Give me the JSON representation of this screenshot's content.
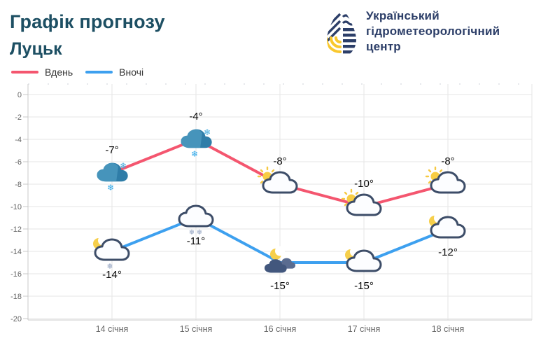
{
  "header": {
    "title_line1": "Графік прогнозу",
    "title_line2": "Луцьк",
    "logo": {
      "line1": "Український",
      "line2": "гідрометеорологічний",
      "line3": "центр"
    }
  },
  "legend": [
    {
      "label": "Вдень",
      "color": "#f4566f"
    },
    {
      "label": "Вночі",
      "color": "#3da0ef"
    }
  ],
  "colors": {
    "title": "#1d4f63",
    "brand_navy": "#2c3e68",
    "brand_yellow": "#f9c82e",
    "day_line": "#f4566f",
    "night_line": "#3da0ef",
    "grid": "#e6e6e6",
    "axis": "#c9c9c9",
    "axis_label": "#666666",
    "data_label": "#0a0a0a"
  },
  "chart_data": {
    "type": "line",
    "title": "Графік прогнозу Луцьк",
    "categories": [
      "14 січня",
      "15 січня",
      "16 січня",
      "17 січня",
      "18 січня"
    ],
    "series": [
      {
        "name": "Вдень",
        "color": "#f4566f",
        "values": [
          -7,
          -4,
          -8,
          -10,
          -8
        ],
        "labels": [
          "-7°",
          "-4°",
          "-8°",
          "-10°",
          "-8°"
        ],
        "icons": [
          "snow-cloud",
          "snow-cloud",
          "sun-cloud",
          "sun-cloud",
          "sun-cloud"
        ],
        "label_position": "above"
      },
      {
        "name": "Вночі",
        "color": "#3da0ef",
        "values": [
          -14,
          -11,
          -15,
          -15,
          -12
        ],
        "labels": [
          "-14°",
          "-11°",
          "-15°",
          "-15°",
          "-12°"
        ],
        "icons": [
          "moon-cloud-snow",
          "cloud-snow",
          "moon-dark-clouds",
          "moon-cloud",
          "moon-cloud"
        ],
        "label_position": "below"
      }
    ],
    "yticks": [
      0,
      -2,
      -4,
      -6,
      -8,
      -10,
      -12,
      -14,
      -16,
      -18,
      -20
    ],
    "ylim": [
      -20,
      0
    ],
    "xlabel": "",
    "ylabel": "",
    "grid": true,
    "legend_position": "top-left"
  }
}
